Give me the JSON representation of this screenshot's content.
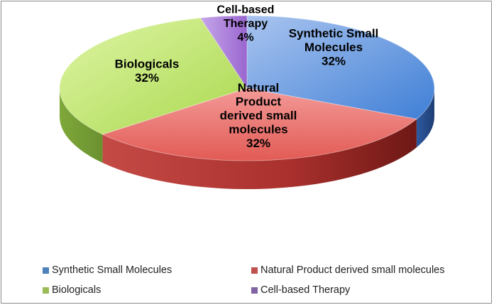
{
  "chart_data": {
    "type": "pie",
    "style": "3d",
    "slices": [
      {
        "label": "Synthetic Small Molecules",
        "value": 32,
        "color": "#4f81bd"
      },
      {
        "label": "Natural Product derived small molecules",
        "value": 32,
        "color": "#c0504d"
      },
      {
        "label": "Biologicals",
        "value": 32,
        "color": "#9bbb59"
      },
      {
        "label": "Cell-based Therapy",
        "value": 4,
        "color": "#8064a2"
      }
    ],
    "slice_text": [
      {
        "lines": [
          "Synthetic Small",
          "Molecules",
          "32%"
        ]
      },
      {
        "lines": [
          "Natural",
          "Product",
          "derived small",
          "molecules",
          "32%"
        ]
      },
      {
        "lines": [
          "Biologicals",
          "32%"
        ]
      },
      {
        "lines": [
          "Cell-based",
          "Therapy",
          "4%"
        ]
      }
    ],
    "legend": {
      "placement": "bottom",
      "entries": [
        "Synthetic Small Molecules",
        "Natural Product derived small molecules",
        "Biologicals",
        "Cell-based Therapy"
      ]
    }
  }
}
